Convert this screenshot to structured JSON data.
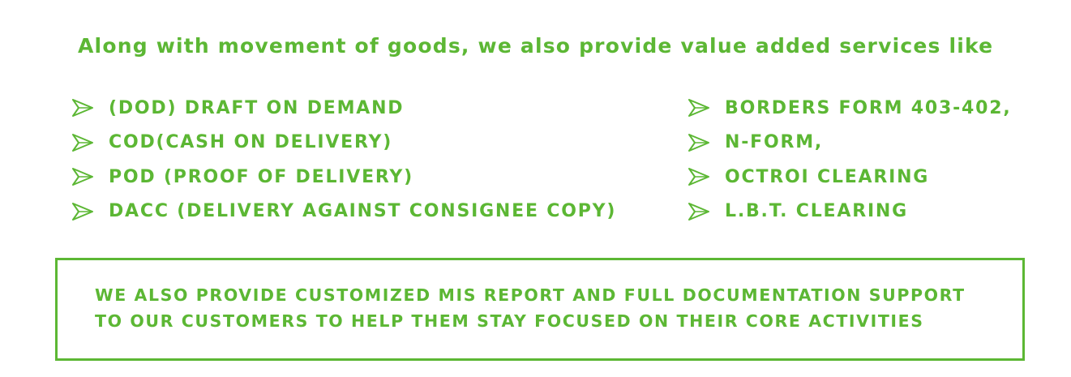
{
  "intro": "Along with movement of goods, we also provide value added services like",
  "services_left": [
    "(DOD) DRAFT ON DEMAND",
    "COD(CASH ON DELIVERY)",
    "POD (PROOF OF DELIVERY)",
    "DACC (DELIVERY AGAINST CONSIGNEE COPY)"
  ],
  "services_right": [
    "BORDERS FORM 403-402,",
    "N-FORM,",
    "OCTROI CLEARING",
    "L.B.T. CLEARING"
  ],
  "bullet_icon": "chevron-arrow-icon",
  "note": {
    "line1": "WE ALSO PROVIDE CUSTOMIZED MIS REPORT AND FULL DOCUMENTATION SUPPORT",
    "line2": "TO OUR CUSTOMERS TO HELP THEM STAY FOCUSED ON THEIR CORE ACTIVITIES"
  },
  "colors": {
    "accent": "#5cb734",
    "background": "#ffffff"
  }
}
